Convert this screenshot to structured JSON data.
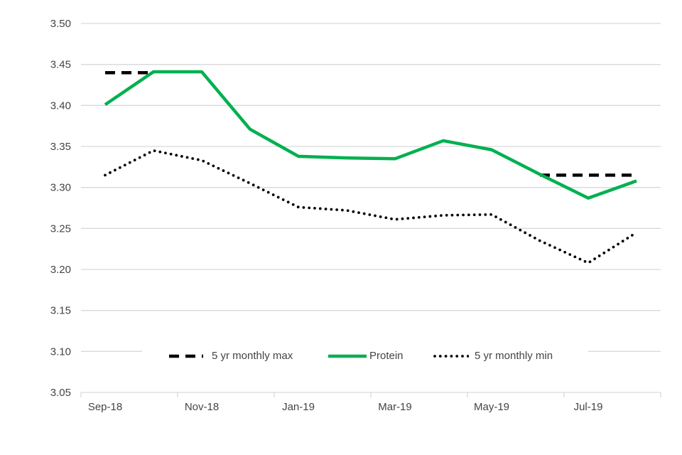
{
  "chart_data": {
    "type": "line",
    "title": "",
    "xlabel": "",
    "ylabel": "",
    "grid": true,
    "legend_position": "bottom-center-inside-plot",
    "x_categories": [
      "Sep-18",
      "Oct-18",
      "Nov-18",
      "Dec-18",
      "Jan-19",
      "Feb-19",
      "Mar-19",
      "Apr-19",
      "May-19",
      "Jun-19",
      "Jul-19",
      "Aug-19"
    ],
    "x_tick_labels": [
      "Sep-18",
      "Nov-18",
      "Jan-19",
      "Mar-19",
      "May-19",
      "Jul-19"
    ],
    "y_axis": {
      "min": 3.05,
      "max": 3.5,
      "step": 0.05,
      "tick_labels": [
        "3.05",
        "3.10",
        "3.15",
        "3.20",
        "3.25",
        "3.30",
        "3.35",
        "3.40",
        "3.45",
        "3.50"
      ]
    },
    "series": [
      {
        "name": "5 yr monthly max",
        "style": "dashed",
        "color": "#000000",
        "values": [
          3.44,
          3.44,
          null,
          null,
          null,
          null,
          null,
          null,
          null,
          3.315,
          3.315,
          3.315
        ]
      },
      {
        "name": "Protein",
        "style": "solid",
        "color": "#00b050",
        "values": [
          3.401,
          3.441,
          3.441,
          3.371,
          3.338,
          3.336,
          3.335,
          3.357,
          3.346,
          3.316,
          3.287,
          3.308
        ]
      },
      {
        "name": "5 yr monthly min",
        "style": "dotted",
        "color": "#000000",
        "values": [
          3.315,
          3.345,
          3.333,
          3.305,
          3.276,
          3.272,
          3.261,
          3.266,
          3.267,
          3.235,
          3.208,
          3.245
        ]
      }
    ]
  },
  "colors": {
    "background": "#ffffff",
    "gridline": "#d9d9d9",
    "axis_text": "#444444",
    "accent_green": "#00b050",
    "series_black": "#000000"
  }
}
